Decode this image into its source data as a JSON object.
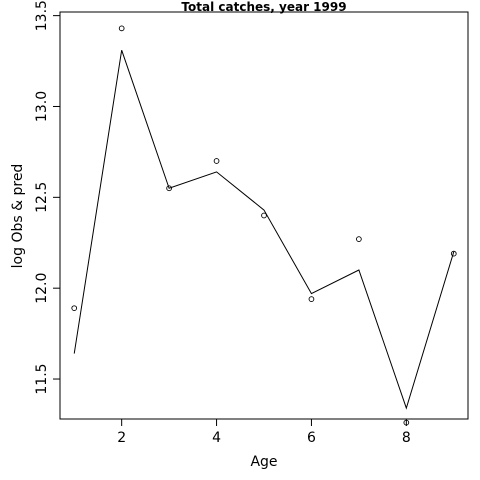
{
  "chart_data": {
    "type": "line",
    "title": "Total catches, year 1999",
    "xlabel": "Age",
    "ylabel": "log Obs & pred",
    "xlim": [
      0.7,
      9.3
    ],
    "ylim": [
      11.28,
      13.52
    ],
    "x_ticks": [
      2,
      4,
      6,
      8
    ],
    "y_ticks": [
      11.5,
      12.0,
      12.5,
      13.0,
      13.5
    ],
    "x_tick_labels": [
      "2",
      "4",
      "6",
      "8"
    ],
    "y_tick_labels": [
      "11.5",
      "12.0",
      "12.5",
      "13.0",
      "13.5"
    ],
    "grid": false,
    "series": [
      {
        "kind": "line",
        "x": [
          1,
          2,
          3,
          4,
          5,
          6,
          7,
          8,
          9
        ],
        "values": [
          11.64,
          13.31,
          12.55,
          12.64,
          12.43,
          11.97,
          12.1,
          11.34,
          12.2
        ]
      },
      {
        "kind": "points",
        "x": [
          1,
          2,
          3,
          4,
          5,
          6,
          7,
          8,
          9
        ],
        "values": [
          11.89,
          13.43,
          12.55,
          12.7,
          12.4,
          11.94,
          12.27,
          11.26,
          12.19
        ]
      }
    ]
  }
}
